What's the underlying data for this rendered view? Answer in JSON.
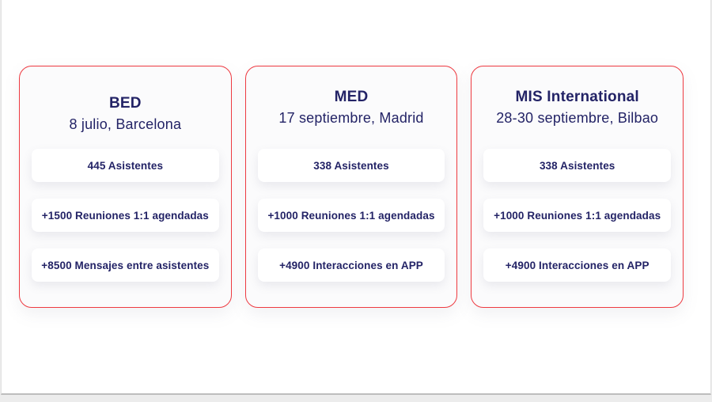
{
  "colors": {
    "card_border": "#ee3a41",
    "text_navy": "#232366",
    "card_background": "#fbfbfc",
    "pill_background": "#ffffff",
    "sheet_background": "#ffffff"
  },
  "cards": [
    {
      "title": "BED",
      "date": "8 julio, Barcelona",
      "stats": [
        "445 Asistentes",
        "+1500 Reuniones 1:1 agendadas",
        "+8500 Mensajes entre asistentes"
      ]
    },
    {
      "title": "MED",
      "date": "17 septiembre, Madrid",
      "stats": [
        "338 Asistentes",
        "+1000 Reuniones 1:1 agendadas",
        "+4900 Interacciones en APP"
      ]
    },
    {
      "title": "MIS International",
      "date": "28-30 septiembre, Bilbao",
      "stats": [
        "338 Asistentes",
        "+1000 Reuniones 1:1 agendadas",
        "+4900 Interacciones en APP"
      ]
    }
  ]
}
